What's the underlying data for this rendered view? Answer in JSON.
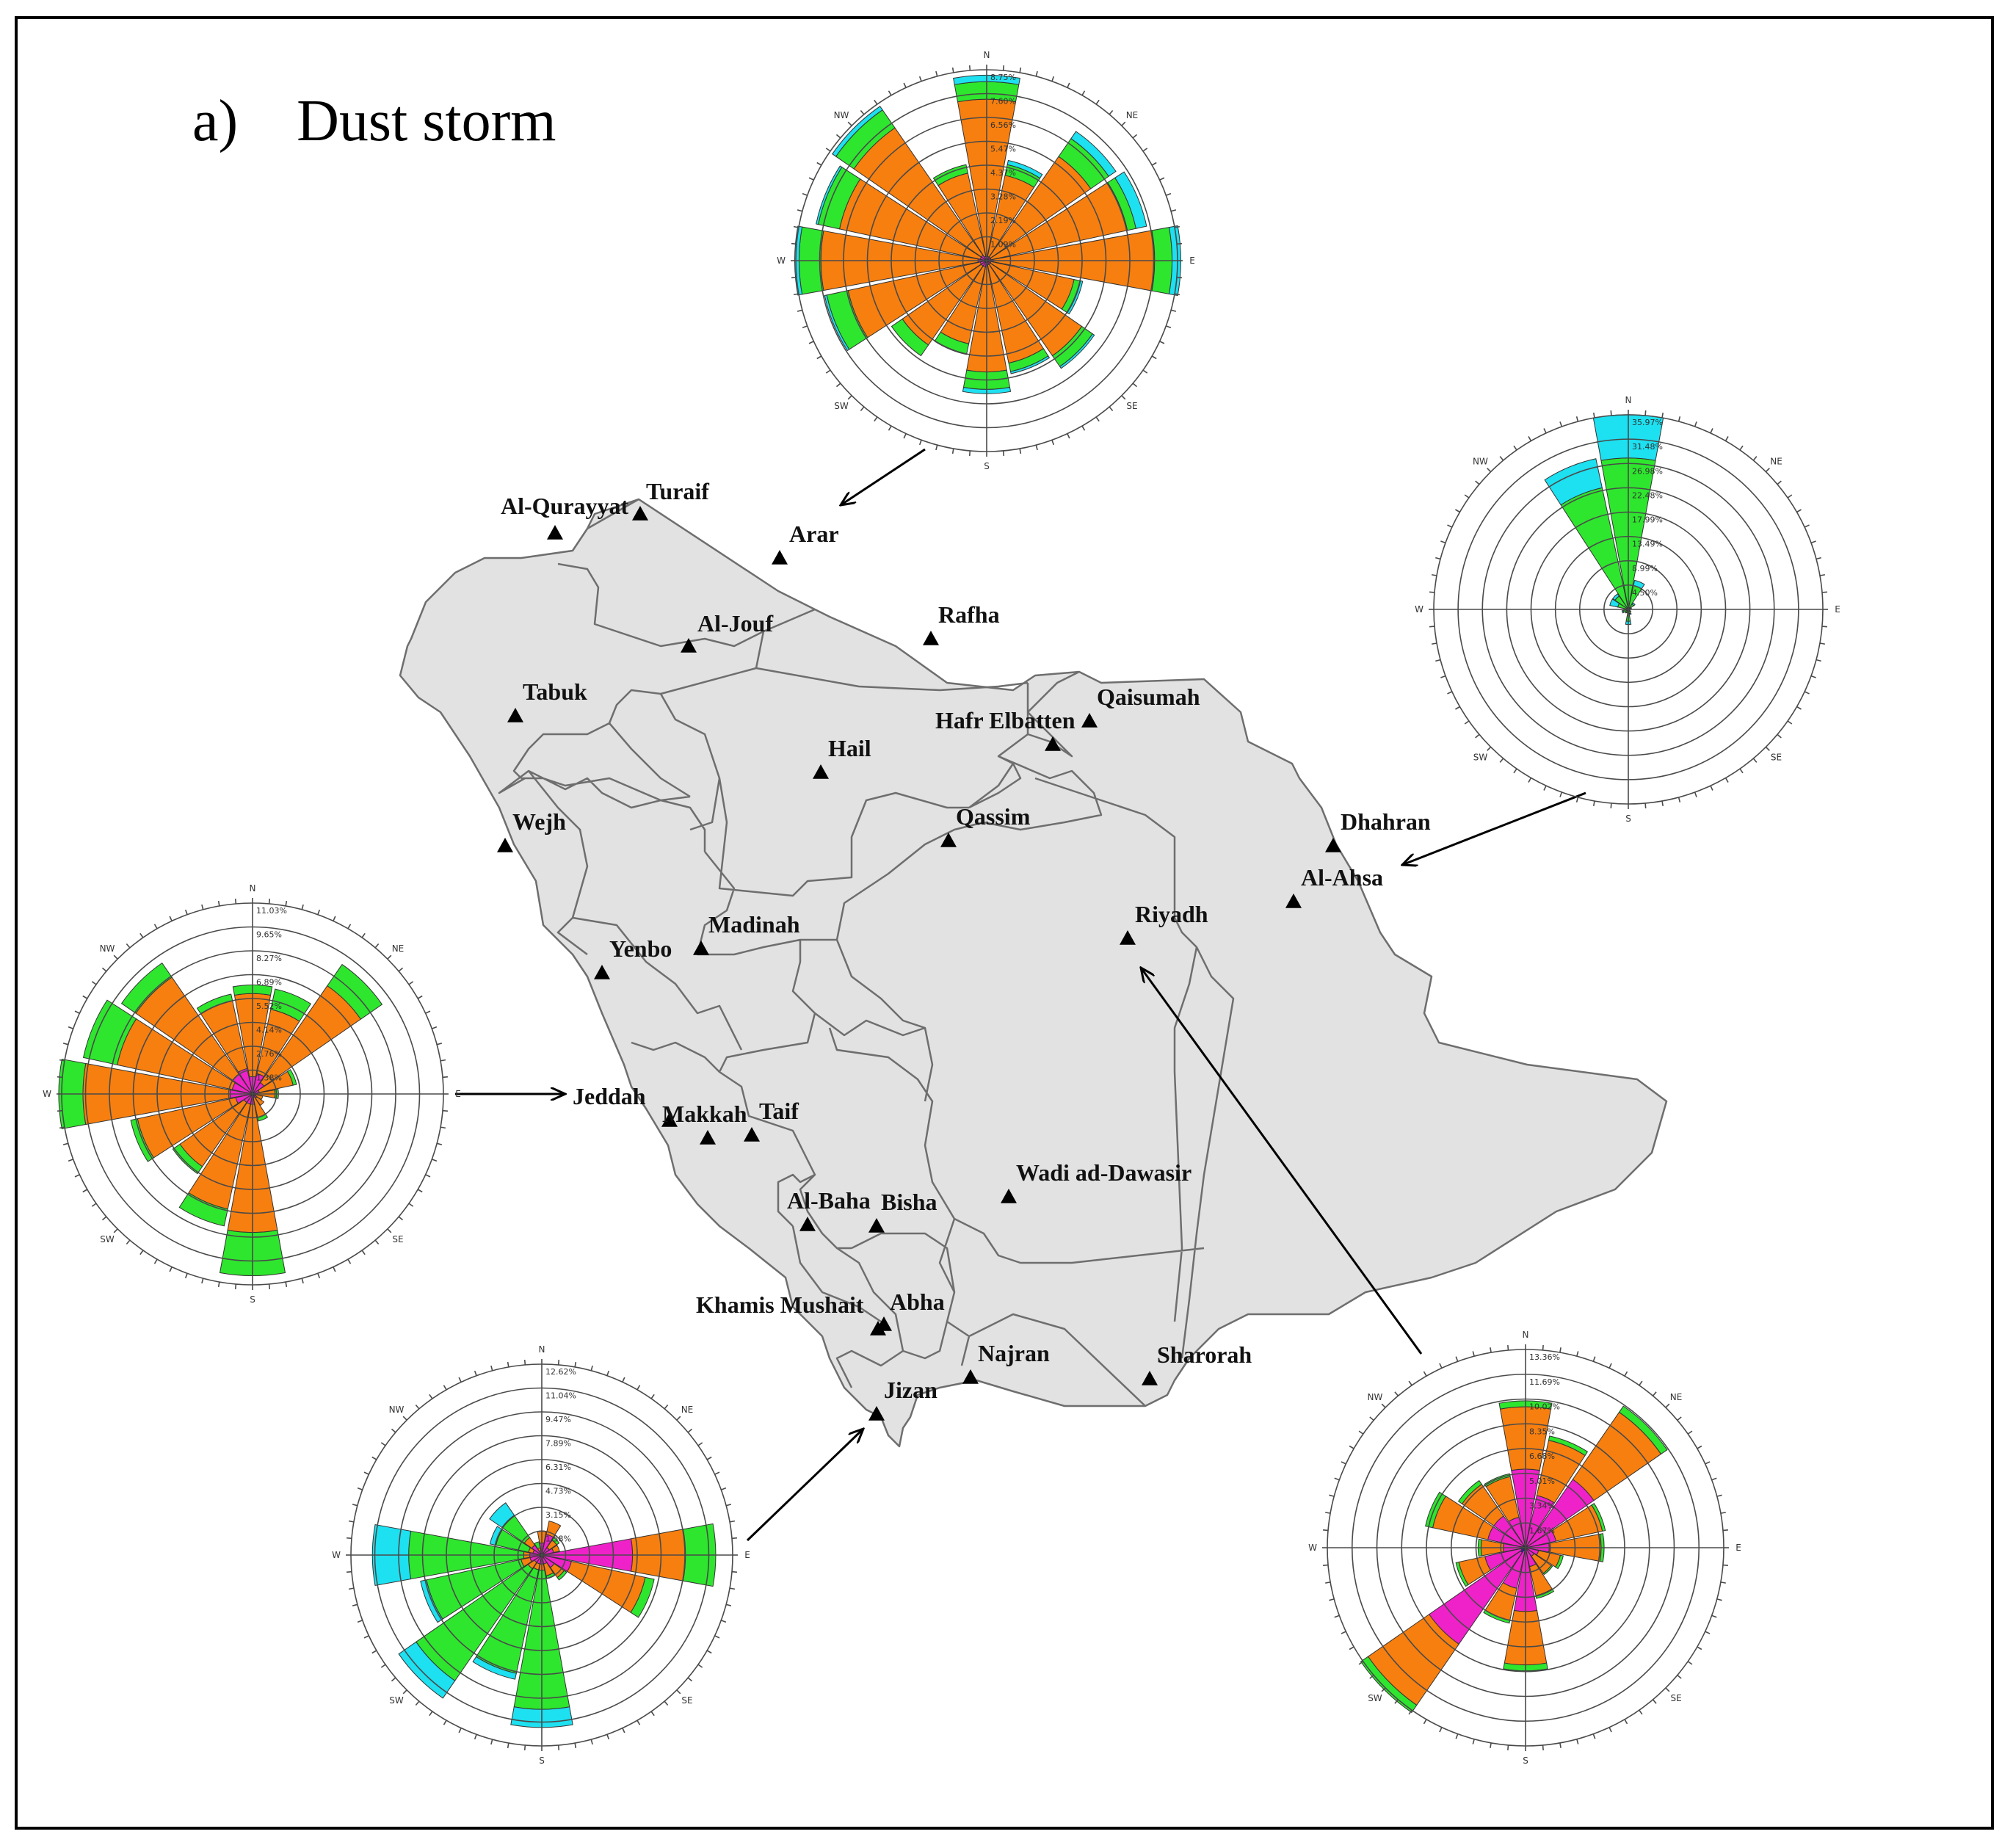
{
  "figure": {
    "title": "a)    Dust storm"
  },
  "legend_colors": {
    "cyan": "#1de0f0",
    "green": "#2ee62e",
    "orange": "#f77f0f",
    "magenta": "#ee22c8",
    "blue": "#1a1aee"
  },
  "cities": [
    {
      "id": "al-qurayyat",
      "name": "Al-Qurayyat",
      "lon": 37.7,
      "lat": 31.3
    },
    {
      "id": "turaif",
      "name": "Turaif",
      "lon": 38.7,
      "lat": 31.7
    },
    {
      "id": "arar",
      "name": "Arar",
      "lon": 41.1,
      "lat": 30.9
    },
    {
      "id": "al-jouf",
      "name": "Al-Jouf",
      "lon": 40.1,
      "lat": 29.8
    },
    {
      "id": "rafha",
      "name": "Rafha",
      "lon": 43.5,
      "lat": 29.6
    },
    {
      "id": "tabuk",
      "name": "Tabuk",
      "lon": 36.6,
      "lat": 28.4
    },
    {
      "id": "qaisumah",
      "name": "Qaisumah",
      "lon": 46.1,
      "lat": 28.3
    },
    {
      "id": "hafr-elbatten",
      "name": "Hafr Elbatten",
      "lon": 45.9,
      "lat": 28.3
    },
    {
      "id": "hail",
      "name": "Hail",
      "lon": 41.7,
      "lat": 27.4
    },
    {
      "id": "qassim",
      "name": "Qassim",
      "lon": 44.0,
      "lat": 26.3
    },
    {
      "id": "wejh",
      "name": "Wejh",
      "lon": 36.5,
      "lat": 26.2
    },
    {
      "id": "dhahran",
      "name": "Dhahran",
      "lon": 50.1,
      "lat": 26.3
    },
    {
      "id": "al-ahsa",
      "name": "Al-Ahsa",
      "lon": 49.6,
      "lat": 25.3
    },
    {
      "id": "riyadh",
      "name": "Riyadh",
      "lon": 46.7,
      "lat": 24.7
    },
    {
      "id": "madinah",
      "name": "Madinah",
      "lon": 39.6,
      "lat": 24.5
    },
    {
      "id": "yenbo",
      "name": "Yenbo",
      "lon": 38.1,
      "lat": 24.1
    },
    {
      "id": "jeddah",
      "name": "Jeddah",
      "lon": 39.2,
      "lat": 21.7
    },
    {
      "id": "makkah",
      "name": "Makkah",
      "lon": 39.8,
      "lat": 21.4
    },
    {
      "id": "taif",
      "name": "Taif",
      "lon": 40.5,
      "lat": 21.3
    },
    {
      "id": "wadi-ad-dawasir",
      "name": "Wadi ad-Dawasir",
      "lon": 45.2,
      "lat": 20.5
    },
    {
      "id": "al-baha",
      "name": "Al-Baha",
      "lon": 41.5,
      "lat": 20.0
    },
    {
      "id": "bisha",
      "name": "Bisha",
      "lon": 42.6,
      "lat": 20.0
    },
    {
      "id": "khamis-mushait",
      "name": "Khamis Mushait",
      "lon": 42.8,
      "lat": 18.3
    },
    {
      "id": "abha",
      "name": "Abha",
      "lon": 42.6,
      "lat": 18.2
    },
    {
      "id": "najran",
      "name": "Najran",
      "lon": 44.4,
      "lat": 17.6
    },
    {
      "id": "sharorah",
      "name": "Sharorah",
      "lon": 47.1,
      "lat": 17.5
    },
    {
      "id": "jizan",
      "name": "Jizan",
      "lon": 42.6,
      "lat": 16.9
    }
  ],
  "wind_roses": [
    {
      "id": "turaif",
      "station": "Turaif",
      "ring_labels": [
        "8.75%",
        "7.60%",
        "6.56%",
        "5.47%",
        "4.37%",
        "3.28%",
        "2.19%",
        "1.09%"
      ],
      "directions": [
        "N",
        "NE",
        "E",
        "SE",
        "S",
        "SW",
        "W",
        "NW"
      ],
      "bins": [
        "#ee22c8",
        "#f77f0f",
        "#2ee62e",
        "#1de0f0"
      ],
      "petals": [
        [
          0.2,
          7.2,
          0.8,
          0.3
        ],
        [
          0.2,
          3.8,
          0.5,
          0.2
        ],
        [
          0.2,
          5.6,
          1.0,
          0.4
        ],
        [
          0.2,
          6.4,
          0.4,
          0.5
        ],
        [
          0.3,
          7.4,
          0.8,
          0.4
        ],
        [
          0.2,
          3.9,
          0.3,
          0.1
        ],
        [
          0.2,
          5.1,
          0.6,
          0.1
        ],
        [
          0.2,
          4.6,
          0.4,
          0.1
        ],
        [
          0.2,
          4.9,
          0.8,
          0.2
        ],
        [
          0.3,
          3.6,
          0.5,
          0.0
        ],
        [
          0.3,
          4.4,
          0.6,
          0.0
        ],
        [
          0.3,
          6.2,
          1.0,
          0.1
        ],
        [
          0.4,
          7.2,
          1.0,
          0.2
        ],
        [
          0.3,
          6.6,
          1.0,
          0.1
        ],
        [
          0.3,
          7.1,
          1.0,
          0.2
        ],
        [
          0.2,
          3.9,
          0.4,
          0.0
        ]
      ]
    },
    {
      "id": "dhahran",
      "station": "Dhahran",
      "ring_labels": [
        "35.97%",
        "31.48%",
        "26.98%",
        "22.48%",
        "17.99%",
        "13.49%",
        "8.99%",
        "4.50%"
      ],
      "directions": [
        "N",
        "NE",
        "E",
        "SE",
        "S",
        "SW",
        "W",
        "NW"
      ],
      "bins": [
        "#ee22c8",
        "#2ee62e",
        "#1de0f0"
      ],
      "petals": [
        [
          0.0,
          28.0,
          8.0
        ],
        [
          0.0,
          4.5,
          1.0
        ],
        [
          0.0,
          1.2,
          0.3
        ],
        [
          0.0,
          0.4,
          0.2
        ],
        [
          0.0,
          0.3,
          0.0
        ],
        [
          0.0,
          0.3,
          0.0
        ],
        [
          0.0,
          0.6,
          0.0
        ],
        [
          0.0,
          0.8,
          0.2
        ],
        [
          0.0,
          2.2,
          0.6
        ],
        [
          0.0,
          0.7,
          0.0
        ],
        [
          0.0,
          0.8,
          0.0
        ],
        [
          0.0,
          1.0,
          0.2
        ],
        [
          0.0,
          0.8,
          0.0
        ],
        [
          0.0,
          2.0,
          1.5
        ],
        [
          0.0,
          3.0,
          0.5
        ],
        [
          0.0,
          23.0,
          5.5
        ]
      ]
    },
    {
      "id": "jeddah",
      "station": "Jeddah",
      "ring_labels": [
        "11.03%",
        "9.65%",
        "8.27%",
        "6.89%",
        "5.52%",
        "4.14%",
        "2.76%",
        "1.38%"
      ],
      "directions": [
        "N",
        "NE",
        "E",
        "SE",
        "S",
        "SW",
        "W",
        "NW"
      ],
      "bins": [
        "#ee22c8",
        "#f77f0f",
        "#2ee62e",
        "#1de0f0"
      ],
      "petals": [
        [
          1.0,
          4.8,
          0.5,
          0.0
        ],
        [
          1.2,
          3.8,
          1.2,
          0.0
        ],
        [
          0.8,
          6.8,
          1.5,
          0.0
        ],
        [
          0.4,
          2.0,
          0.2,
          0.0
        ],
        [
          0.3,
          1.0,
          0.2,
          0.0
        ],
        [
          0.2,
          0.4,
          0.0,
          0.0
        ],
        [
          0.3,
          0.5,
          0.0,
          0.0
        ],
        [
          0.2,
          1.2,
          0.2,
          0.0
        ],
        [
          0.6,
          7.4,
          2.5,
          0.0
        ],
        [
          0.6,
          6.2,
          1.0,
          0.0
        ],
        [
          0.6,
          4.5,
          0.5,
          0.0
        ],
        [
          1.0,
          5.8,
          0.4,
          0.0
        ],
        [
          1.3,
          8.5,
          1.4,
          0.0
        ],
        [
          1.2,
          6.8,
          2.0,
          0.0
        ],
        [
          1.4,
          6.8,
          1.0,
          0.0
        ],
        [
          1.5,
          4.0,
          0.4,
          0.0
        ]
      ]
    },
    {
      "id": "jizan",
      "station": "Jizan",
      "ring_labels": [
        "12.62%",
        "11.04%",
        "9.47%",
        "7.89%",
        "6.31%",
        "4.73%",
        "3.15%",
        "1.58%"
      ],
      "directions": [
        "N",
        "NE",
        "E",
        "SE",
        "S",
        "SW",
        "W",
        "NW"
      ],
      "bins": [
        "#ee22c8",
        "#f77f0f",
        "#2ee62e",
        "#1de0f0"
      ],
      "petals": [
        [
          0.8,
          0.8,
          0.0,
          0.0
        ],
        [
          1.4,
          0.9,
          0.0,
          0.0
        ],
        [
          0.6,
          0.6,
          0.2,
          0.0
        ],
        [
          0.8,
          0.4,
          0.0,
          0.0
        ],
        [
          6.0,
          3.5,
          2.0,
          0.0
        ],
        [
          2.0,
          5.0,
          0.6,
          0.0
        ],
        [
          1.0,
          0.8,
          0.2,
          0.0
        ],
        [
          0.6,
          0.8,
          0.2,
          0.0
        ],
        [
          0.6,
          0.4,
          9.2,
          1.2
        ],
        [
          0.6,
          0.4,
          7.0,
          0.4
        ],
        [
          0.6,
          0.5,
          9.0,
          1.4
        ],
        [
          0.8,
          0.6,
          6.4,
          0.4
        ],
        [
          0.8,
          0.4,
          7.6,
          2.4
        ],
        [
          0.6,
          0.3,
          2.2,
          0.4
        ],
        [
          0.8,
          0.6,
          1.8,
          1.0
        ],
        [
          0.3,
          0.2,
          0.4,
          0.0
        ]
      ]
    },
    {
      "id": "riyadh",
      "station": "Riyadh",
      "ring_labels": [
        "13.36%",
        "11.69%",
        "10.02%",
        "8.35%",
        "6.68%",
        "5.01%",
        "3.34%",
        "1.67%"
      ],
      "directions": [
        "N",
        "NE",
        "E",
        "SE",
        "S",
        "SW",
        "W",
        "NW"
      ],
      "bins": [
        "#1a1aee",
        "#ee22c8",
        "#f77f0f",
        "#2ee62e"
      ],
      "petals": [
        [
          0.1,
          5.2,
          4.2,
          0.4
        ],
        [
          0.1,
          3.5,
          3.8,
          0.3
        ],
        [
          0.1,
          5.5,
          5.5,
          0.5
        ],
        [
          0.1,
          2.0,
          3.2,
          0.2
        ],
        [
          0.1,
          1.5,
          3.5,
          0.2
        ],
        [
          0.1,
          0.8,
          1.5,
          0.2
        ],
        [
          0.1,
          0.6,
          1.4,
          0.1
        ],
        [
          0.1,
          1.2,
          2.0,
          0.2
        ],
        [
          0.3,
          4.0,
          3.6,
          0.4
        ],
        [
          0.2,
          2.6,
          2.2,
          0.2
        ],
        [
          0.4,
          7.5,
          5.0,
          0.6
        ],
        [
          0.3,
          2.5,
          1.8,
          0.2
        ],
        [
          0.3,
          1.2,
          1.5,
          0.2
        ],
        [
          0.2,
          2.4,
          3.8,
          0.5
        ],
        [
          0.2,
          2.4,
          2.6,
          0.3
        ],
        [
          0.1,
          2.0,
          2.8,
          0.2
        ]
      ]
    }
  ]
}
